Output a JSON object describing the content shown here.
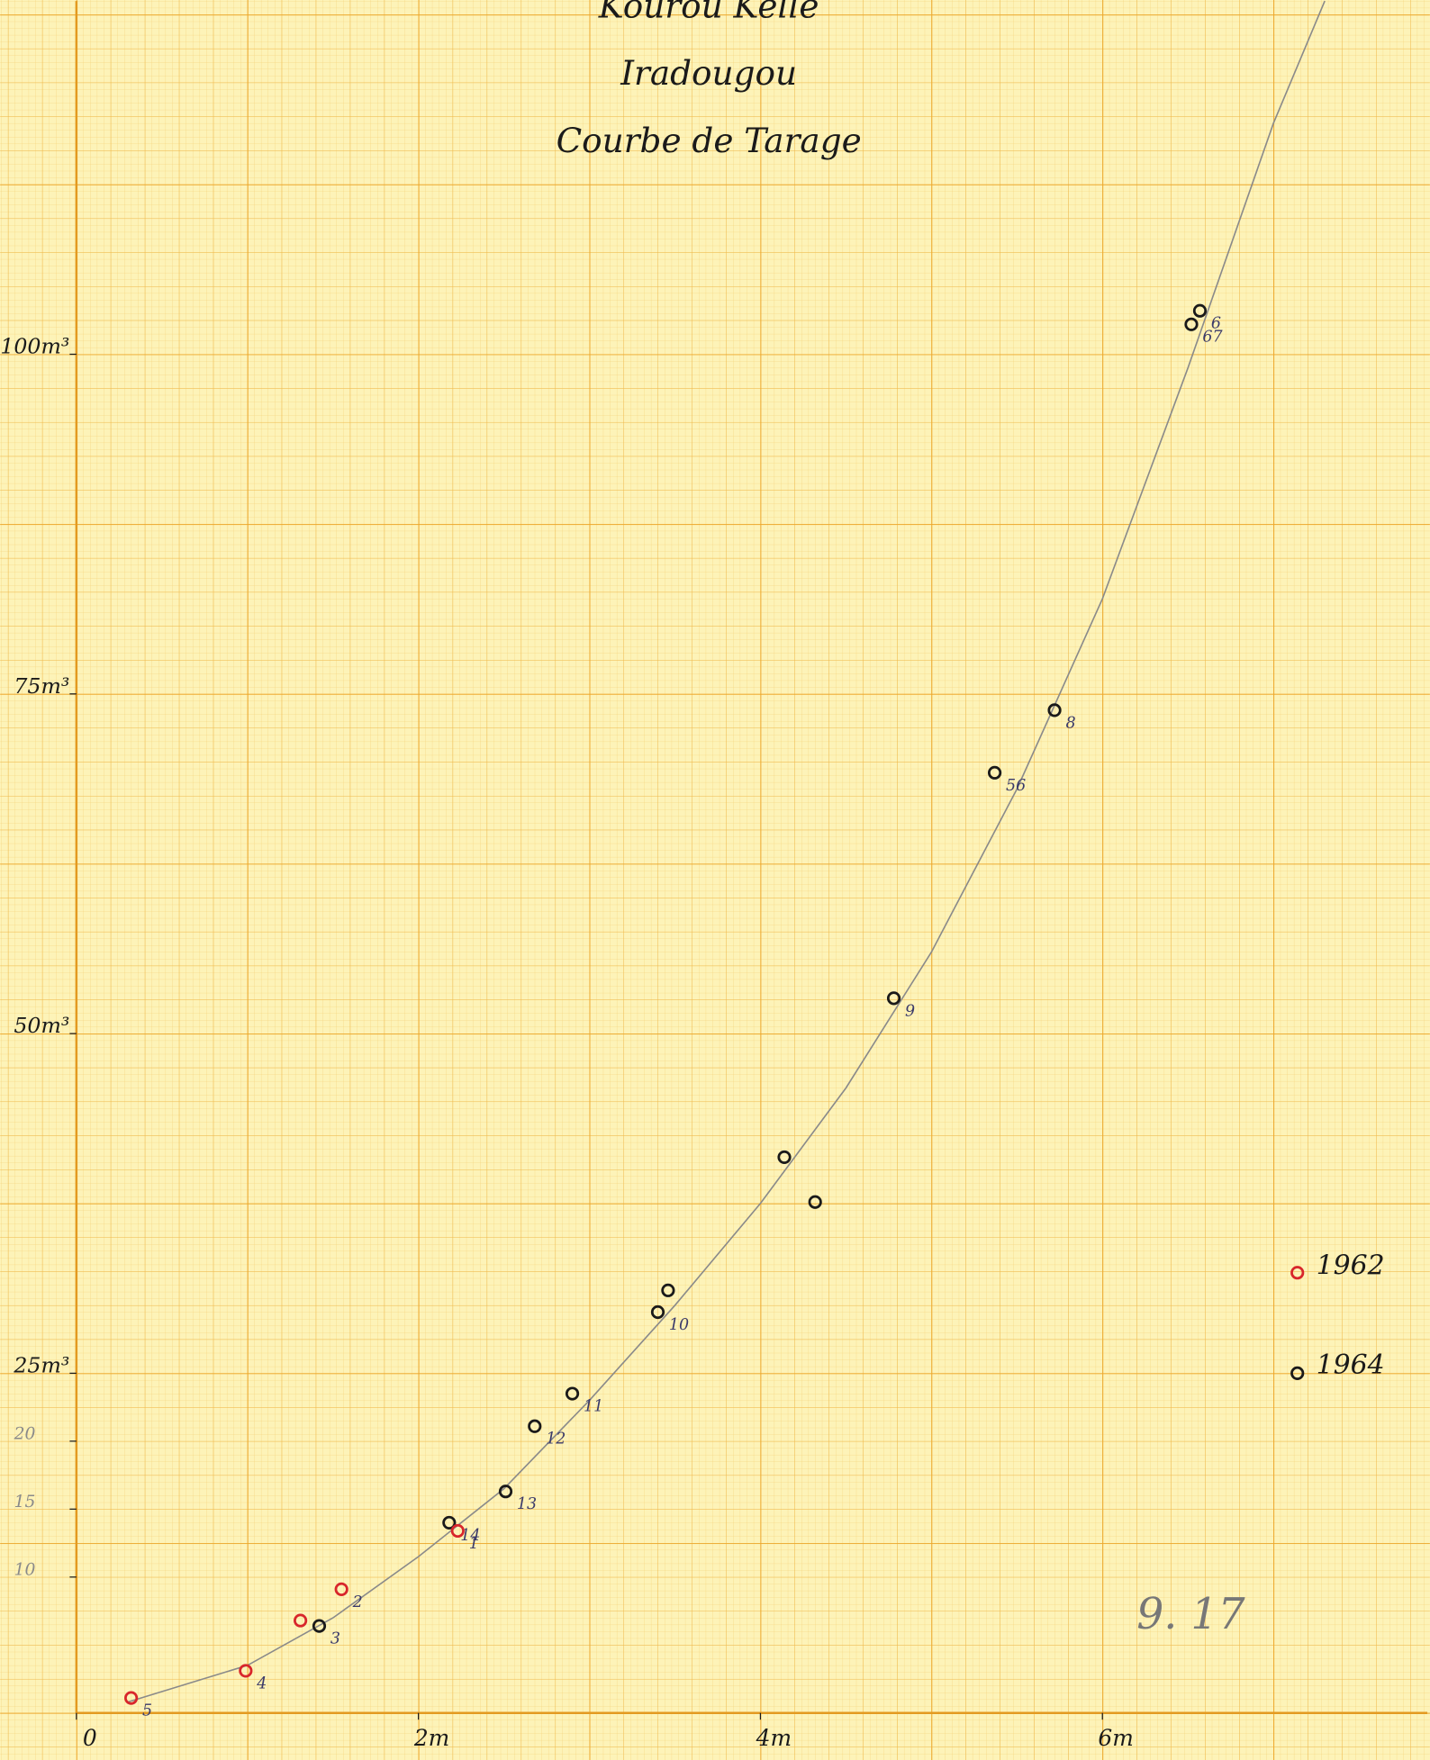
{
  "chart_data": {
    "type": "scatter",
    "title_lines": [
      "Kourou Kelle",
      "Iradougou",
      "Courbe de Tarage"
    ],
    "xlim": [
      0,
      7.9
    ],
    "ylim": [
      0,
      126
    ],
    "xticks": [
      0,
      {
        "value": 2,
        "label": "2m"
      },
      {
        "value": 4,
        "label": "4m"
      },
      {
        "value": 6,
        "label": "6m"
      },
      8
    ],
    "yticks": [
      10,
      15,
      20,
      {
        "value": 25,
        "label": "25m³"
      },
      {
        "value": 50,
        "label": "50m³"
      },
      {
        "value": 75,
        "label": "75m³"
      },
      {
        "value": 100,
        "label": "100m³"
      }
    ],
    "series": [
      {
        "color": "#1a1a1a",
        "x": [
          2.18,
          1.42,
          2.51,
          2.68,
          2.9,
          3.4,
          3.46,
          4.14,
          4.32,
          4.78,
          5.37,
          5.72,
          6.52,
          6.57,
          7.14
        ],
        "values": [
          14.0,
          6.4,
          16.3,
          21.1,
          23.5,
          29.5,
          31.1,
          40.9,
          37.6,
          52.6,
          69.2,
          73.8,
          102.2,
          103.2,
          25.0
        ],
        "labels": [
          "14",
          "3",
          "13",
          "12",
          "11",
          "10",
          null,
          null,
          null,
          "9",
          "56",
          "8",
          "67",
          "6",
          null
        ]
      },
      {
        "color": "#d8262b",
        "x": [
          0.32,
          0.99,
          1.31,
          1.55,
          2.23,
          7.14
        ],
        "values": [
          1.1,
          3.1,
          6.8,
          9.1,
          13.4,
          32.4
        ],
        "labels": [
          "5",
          "4",
          null,
          "2",
          "1",
          null
        ]
      }
    ],
    "curve": {
      "color": "#8a8a8a",
      "x": [
        0.3,
        1.0,
        1.5,
        2.0,
        2.5,
        3.0,
        3.5,
        4.0,
        4.5,
        5.0,
        5.5,
        6.0,
        6.5,
        7.0,
        7.3
      ],
      "values": [
        0.8,
        3.5,
        7.0,
        11.5,
        16.5,
        23.0,
        30.0,
        37.5,
        46.0,
        56.0,
        68.0,
        82.0,
        99.0,
        117.0,
        126.0
      ]
    },
    "annotations": [
      {
        "text": "1962",
        "x": 7.25,
        "y": 32.8
      },
      {
        "text": "1964",
        "x": 7.25,
        "y": 25.5
      },
      {
        "text": "9. 17",
        "x": 6.2,
        "y": 7.0
      }
    ]
  }
}
